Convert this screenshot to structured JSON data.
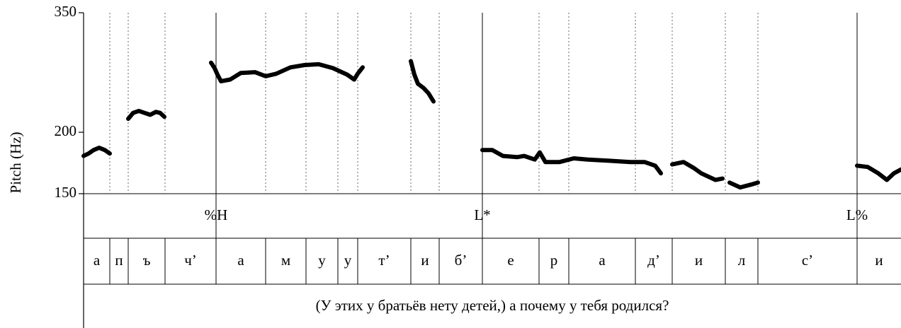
{
  "chart_data": {
    "type": "line",
    "y_label": "Pitch (Hz)",
    "ylim": [
      150,
      350
    ],
    "yticks": [
      150,
      200,
      350
    ],
    "ylog": true,
    "color": "#000000",
    "xlim": [
      0,
      2.308
    ],
    "x": [
      0,
      0.014,
      0.028,
      0.044,
      0.06,
      0.074,
      null,
      0.126,
      0.14,
      0.156,
      0.172,
      0.188,
      0.204,
      0.216,
      0.228,
      null,
      0.36,
      0.37,
      0.378,
      0.388,
      0.414,
      0.444,
      0.484,
      0.514,
      0.544,
      0.584,
      0.624,
      0.664,
      0.704,
      0.744,
      0.764,
      0.774,
      0.788,
      null,
      0.924,
      0.934,
      0.944,
      0.96,
      0.974,
      0.988,
      null,
      1.126,
      1.154,
      1.184,
      1.224,
      1.244,
      1.274,
      1.288,
      1.304,
      1.344,
      1.384,
      1.424,
      1.484,
      1.544,
      1.584,
      1.614,
      1.63,
      null,
      1.662,
      1.694,
      1.724,
      1.744,
      1.784,
      1.804,
      null,
      1.824,
      1.854,
      1.884,
      1.904,
      null,
      2.184,
      2.214,
      2.244,
      2.268,
      2.288,
      2.308
    ],
    "values": [
      179,
      181,
      184,
      186,
      184,
      181,
      null,
      213,
      219,
      221,
      219,
      217,
      220,
      219,
      215,
      null,
      277,
      270,
      262,
      254,
      256,
      264,
      265,
      260,
      263,
      271,
      274,
      275,
      270,
      262,
      256,
      263,
      271,
      null,
      279,
      262,
      251,
      246,
      240,
      231,
      null,
      184,
      184,
      179,
      178,
      179,
      176,
      182,
      174,
      174,
      177,
      176,
      175,
      174,
      174,
      171,
      165,
      null,
      172,
      174,
      169,
      165,
      160,
      161,
      null,
      158,
      154.5,
      156.5,
      158,
      null,
      171,
      170,
      165,
      160,
      165,
      168
    ],
    "tones": [
      {
        "time": 0.374,
        "label": "%H"
      },
      {
        "time": 1.126,
        "label": "L*"
      },
      {
        "time": 2.184,
        "label": "L%"
      }
    ],
    "segments": {
      "labels": [
        "а",
        "п",
        "ъ",
        "ч’",
        "а",
        "м",
        "у",
        "у",
        "т’",
        "и",
        "б’",
        "е",
        "р",
        "а",
        "д’",
        "и",
        "л",
        "с’",
        "и"
      ],
      "boundaries": [
        0.074,
        0.126,
        0.23,
        0.374,
        0.514,
        0.628,
        0.718,
        0.774,
        0.924,
        1.004,
        1.126,
        1.286,
        1.37,
        1.558,
        1.662,
        1.812,
        1.904,
        2.184
      ]
    },
    "sentence": "(У этих у братьёв нету детей,) а почему у тебя родился?"
  }
}
